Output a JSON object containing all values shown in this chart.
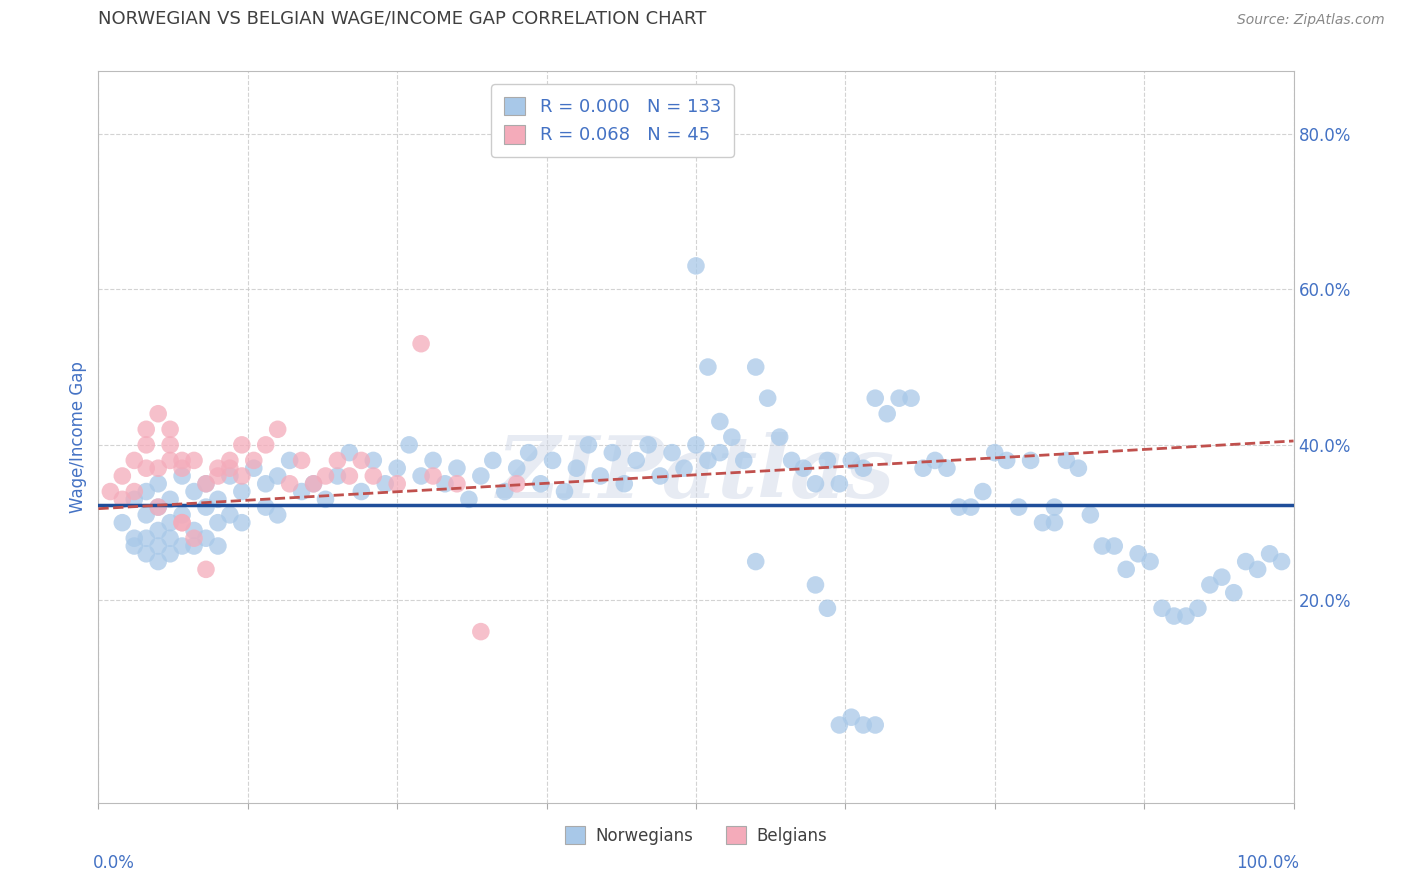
{
  "title": "NORWEGIAN VS BELGIAN WAGE/INCOME GAP CORRELATION CHART",
  "source": "Source: ZipAtlas.com",
  "ylabel": "Wage/Income Gap",
  "xlim": [
    0.0,
    1.0
  ],
  "ylim": [
    -0.06,
    0.88
  ],
  "norwegian_R": "0.000",
  "norwegian_N": "133",
  "belgian_R": "0.068",
  "belgian_N": "45",
  "norwegian_color": "#A8C8E8",
  "norwegian_line_color": "#1F4E9A",
  "belgian_color": "#F4ABBA",
  "belgian_line_color": "#C0504D",
  "background_color": "#FFFFFF",
  "plot_bg_color": "#FFFFFF",
  "grid_color": "#C8C8C8",
  "title_color": "#404040",
  "axis_label_color": "#4472C4",
  "text_color": "#4472C4",
  "watermark": "ZIPatlas",
  "ytick_positions": [
    0.2,
    0.4,
    0.6,
    0.8
  ],
  "ytick_labels": [
    "20.0%",
    "40.0%",
    "60.0%",
    "80.0%"
  ],
  "xtick_positions": [
    0.0,
    0.125,
    0.25,
    0.375,
    0.5,
    0.625,
    0.75,
    0.875,
    1.0
  ],
  "nor_line_y": 0.323,
  "bel_line_start": 0.318,
  "bel_line_end": 0.405,
  "nor_x": [
    0.02,
    0.03,
    0.03,
    0.03,
    0.04,
    0.04,
    0.04,
    0.04,
    0.05,
    0.05,
    0.05,
    0.05,
    0.05,
    0.06,
    0.06,
    0.06,
    0.06,
    0.07,
    0.07,
    0.07,
    0.08,
    0.08,
    0.08,
    0.09,
    0.09,
    0.09,
    0.1,
    0.1,
    0.1,
    0.11,
    0.11,
    0.12,
    0.12,
    0.13,
    0.14,
    0.14,
    0.15,
    0.15,
    0.16,
    0.17,
    0.18,
    0.19,
    0.2,
    0.21,
    0.22,
    0.23,
    0.24,
    0.25,
    0.26,
    0.27,
    0.28,
    0.29,
    0.3,
    0.31,
    0.32,
    0.33,
    0.34,
    0.35,
    0.36,
    0.37,
    0.38,
    0.39,
    0.4,
    0.41,
    0.42,
    0.43,
    0.44,
    0.45,
    0.46,
    0.47,
    0.48,
    0.49,
    0.5,
    0.51,
    0.52,
    0.52,
    0.53,
    0.54,
    0.55,
    0.56,
    0.57,
    0.58,
    0.59,
    0.6,
    0.61,
    0.62,
    0.63,
    0.64,
    0.65,
    0.66,
    0.67,
    0.68,
    0.69,
    0.7,
    0.71,
    0.72,
    0.73,
    0.74,
    0.75,
    0.76,
    0.77,
    0.78,
    0.79,
    0.8,
    0.81,
    0.82,
    0.83,
    0.84,
    0.85,
    0.86,
    0.87,
    0.88,
    0.89,
    0.9,
    0.91,
    0.92,
    0.93,
    0.94,
    0.95,
    0.96,
    0.97,
    0.98,
    0.99,
    0.5,
    0.51,
    0.55,
    0.6,
    0.61,
    0.62,
    0.63,
    0.64,
    0.65,
    0.8
  ],
  "nor_y": [
    0.3,
    0.33,
    0.28,
    0.27,
    0.34,
    0.31,
    0.28,
    0.26,
    0.32,
    0.35,
    0.29,
    0.27,
    0.25,
    0.33,
    0.3,
    0.28,
    0.26,
    0.36,
    0.31,
    0.27,
    0.34,
    0.29,
    0.27,
    0.35,
    0.32,
    0.28,
    0.33,
    0.3,
    0.27,
    0.36,
    0.31,
    0.34,
    0.3,
    0.37,
    0.35,
    0.32,
    0.36,
    0.31,
    0.38,
    0.34,
    0.35,
    0.33,
    0.36,
    0.39,
    0.34,
    0.38,
    0.35,
    0.37,
    0.4,
    0.36,
    0.38,
    0.35,
    0.37,
    0.33,
    0.36,
    0.38,
    0.34,
    0.37,
    0.39,
    0.35,
    0.38,
    0.34,
    0.37,
    0.4,
    0.36,
    0.39,
    0.35,
    0.38,
    0.4,
    0.36,
    0.39,
    0.37,
    0.4,
    0.38,
    0.43,
    0.39,
    0.41,
    0.38,
    0.5,
    0.46,
    0.41,
    0.38,
    0.37,
    0.35,
    0.38,
    0.35,
    0.38,
    0.37,
    0.46,
    0.44,
    0.46,
    0.46,
    0.37,
    0.38,
    0.37,
    0.32,
    0.32,
    0.34,
    0.39,
    0.38,
    0.32,
    0.38,
    0.3,
    0.32,
    0.38,
    0.37,
    0.31,
    0.27,
    0.27,
    0.24,
    0.26,
    0.25,
    0.19,
    0.18,
    0.18,
    0.19,
    0.22,
    0.23,
    0.21,
    0.25,
    0.24,
    0.26,
    0.25,
    0.63,
    0.5,
    0.25,
    0.22,
    0.19,
    0.04,
    0.05,
    0.04,
    0.04,
    0.3
  ],
  "bel_x": [
    0.01,
    0.02,
    0.02,
    0.03,
    0.03,
    0.04,
    0.04,
    0.04,
    0.05,
    0.05,
    0.05,
    0.06,
    0.06,
    0.06,
    0.07,
    0.07,
    0.07,
    0.07,
    0.08,
    0.08,
    0.09,
    0.09,
    0.1,
    0.1,
    0.11,
    0.11,
    0.12,
    0.12,
    0.13,
    0.14,
    0.15,
    0.16,
    0.17,
    0.18,
    0.19,
    0.2,
    0.21,
    0.22,
    0.23,
    0.25,
    0.27,
    0.28,
    0.3,
    0.32,
    0.35
  ],
  "bel_y": [
    0.34,
    0.33,
    0.36,
    0.38,
    0.34,
    0.4,
    0.42,
    0.37,
    0.37,
    0.44,
    0.32,
    0.38,
    0.4,
    0.42,
    0.37,
    0.38,
    0.3,
    0.3,
    0.38,
    0.28,
    0.35,
    0.24,
    0.37,
    0.36,
    0.38,
    0.37,
    0.4,
    0.36,
    0.38,
    0.4,
    0.42,
    0.35,
    0.38,
    0.35,
    0.36,
    0.38,
    0.36,
    0.38,
    0.36,
    0.35,
    0.53,
    0.36,
    0.35,
    0.16,
    0.35
  ]
}
